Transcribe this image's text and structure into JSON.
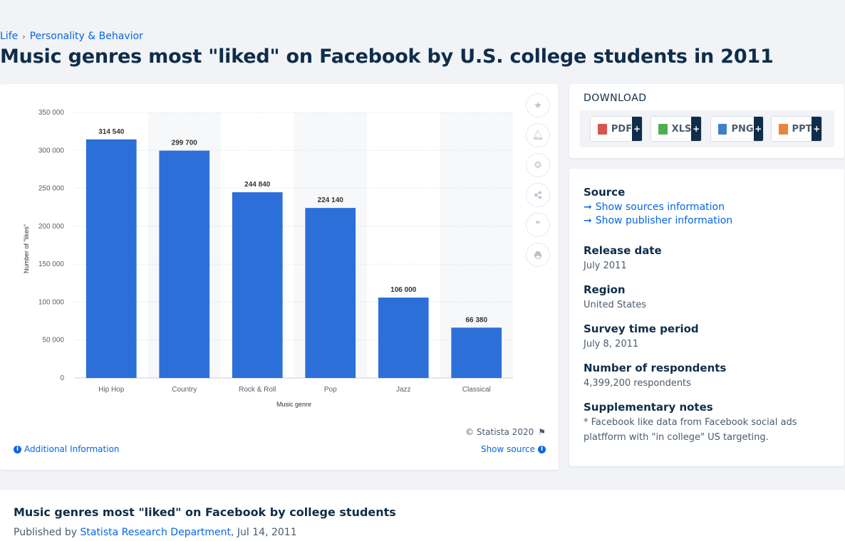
{
  "breadcrumb": {
    "items": [
      "Life",
      "Personality & Behavior"
    ]
  },
  "page": {
    "title": "Music genres most \"liked\" on Facebook by U.S. college students in 2011"
  },
  "chart_data": {
    "type": "bar",
    "categories": [
      "Hip Hop",
      "Country",
      "Rock & Roll",
      "Pop",
      "Jazz",
      "Classical"
    ],
    "values": [
      314540,
      299700,
      244840,
      224140,
      106000,
      66380
    ],
    "value_labels": [
      "314 540",
      "299 700",
      "244 840",
      "224 140",
      "106 000",
      "66 380"
    ],
    "y_ticks": [
      0,
      50000,
      100000,
      150000,
      200000,
      250000,
      300000,
      350000
    ],
    "y_tick_labels": [
      "0",
      "50 000",
      "100 000",
      "150 000",
      "200 000",
      "250 000",
      "300 000",
      "350 000"
    ],
    "ylim": [
      0,
      350000
    ],
    "xlabel": "Music genre",
    "ylabel": "Number of \"likes\"",
    "bar_color": "#2c6fd9",
    "grid": true
  },
  "chart_footer": {
    "copyright": "© Statista 2020",
    "additional_info": "Additional Information",
    "show_source": "Show source"
  },
  "download": {
    "title": "DOWNLOAD",
    "buttons": [
      {
        "label": "PDF",
        "color": "#d9534f"
      },
      {
        "label": "XLS",
        "color": "#4caf50"
      },
      {
        "label": "PNG",
        "color": "#3b82c4"
      },
      {
        "label": "PPT",
        "color": "#e8843c"
      }
    ],
    "plus": "+"
  },
  "meta": {
    "source_heading": "Source",
    "show_sources": "Show sources information",
    "show_publisher": "Show publisher information",
    "release_heading": "Release date",
    "release_value": "July 2011",
    "region_heading": "Region",
    "region_value": "United States",
    "survey_heading": "Survey time period",
    "survey_value": "July 8, 2011",
    "respondents_heading": "Number of respondents",
    "respondents_value": "4,399,200 respondents",
    "notes_heading": "Supplementary notes",
    "notes_value": "* Facebook like data from Facebook social ads platfform with \"in college\" US targeting."
  },
  "bottom": {
    "title": "Music genres most \"liked\" on Facebook by college students",
    "published_prefix": "Published by",
    "publisher": "Statista Research Department",
    "date": ", Jul 14, 2011"
  },
  "tools": [
    "star-icon",
    "bell-icon",
    "gear-icon",
    "share-icon",
    "quote-icon",
    "print-icon"
  ]
}
